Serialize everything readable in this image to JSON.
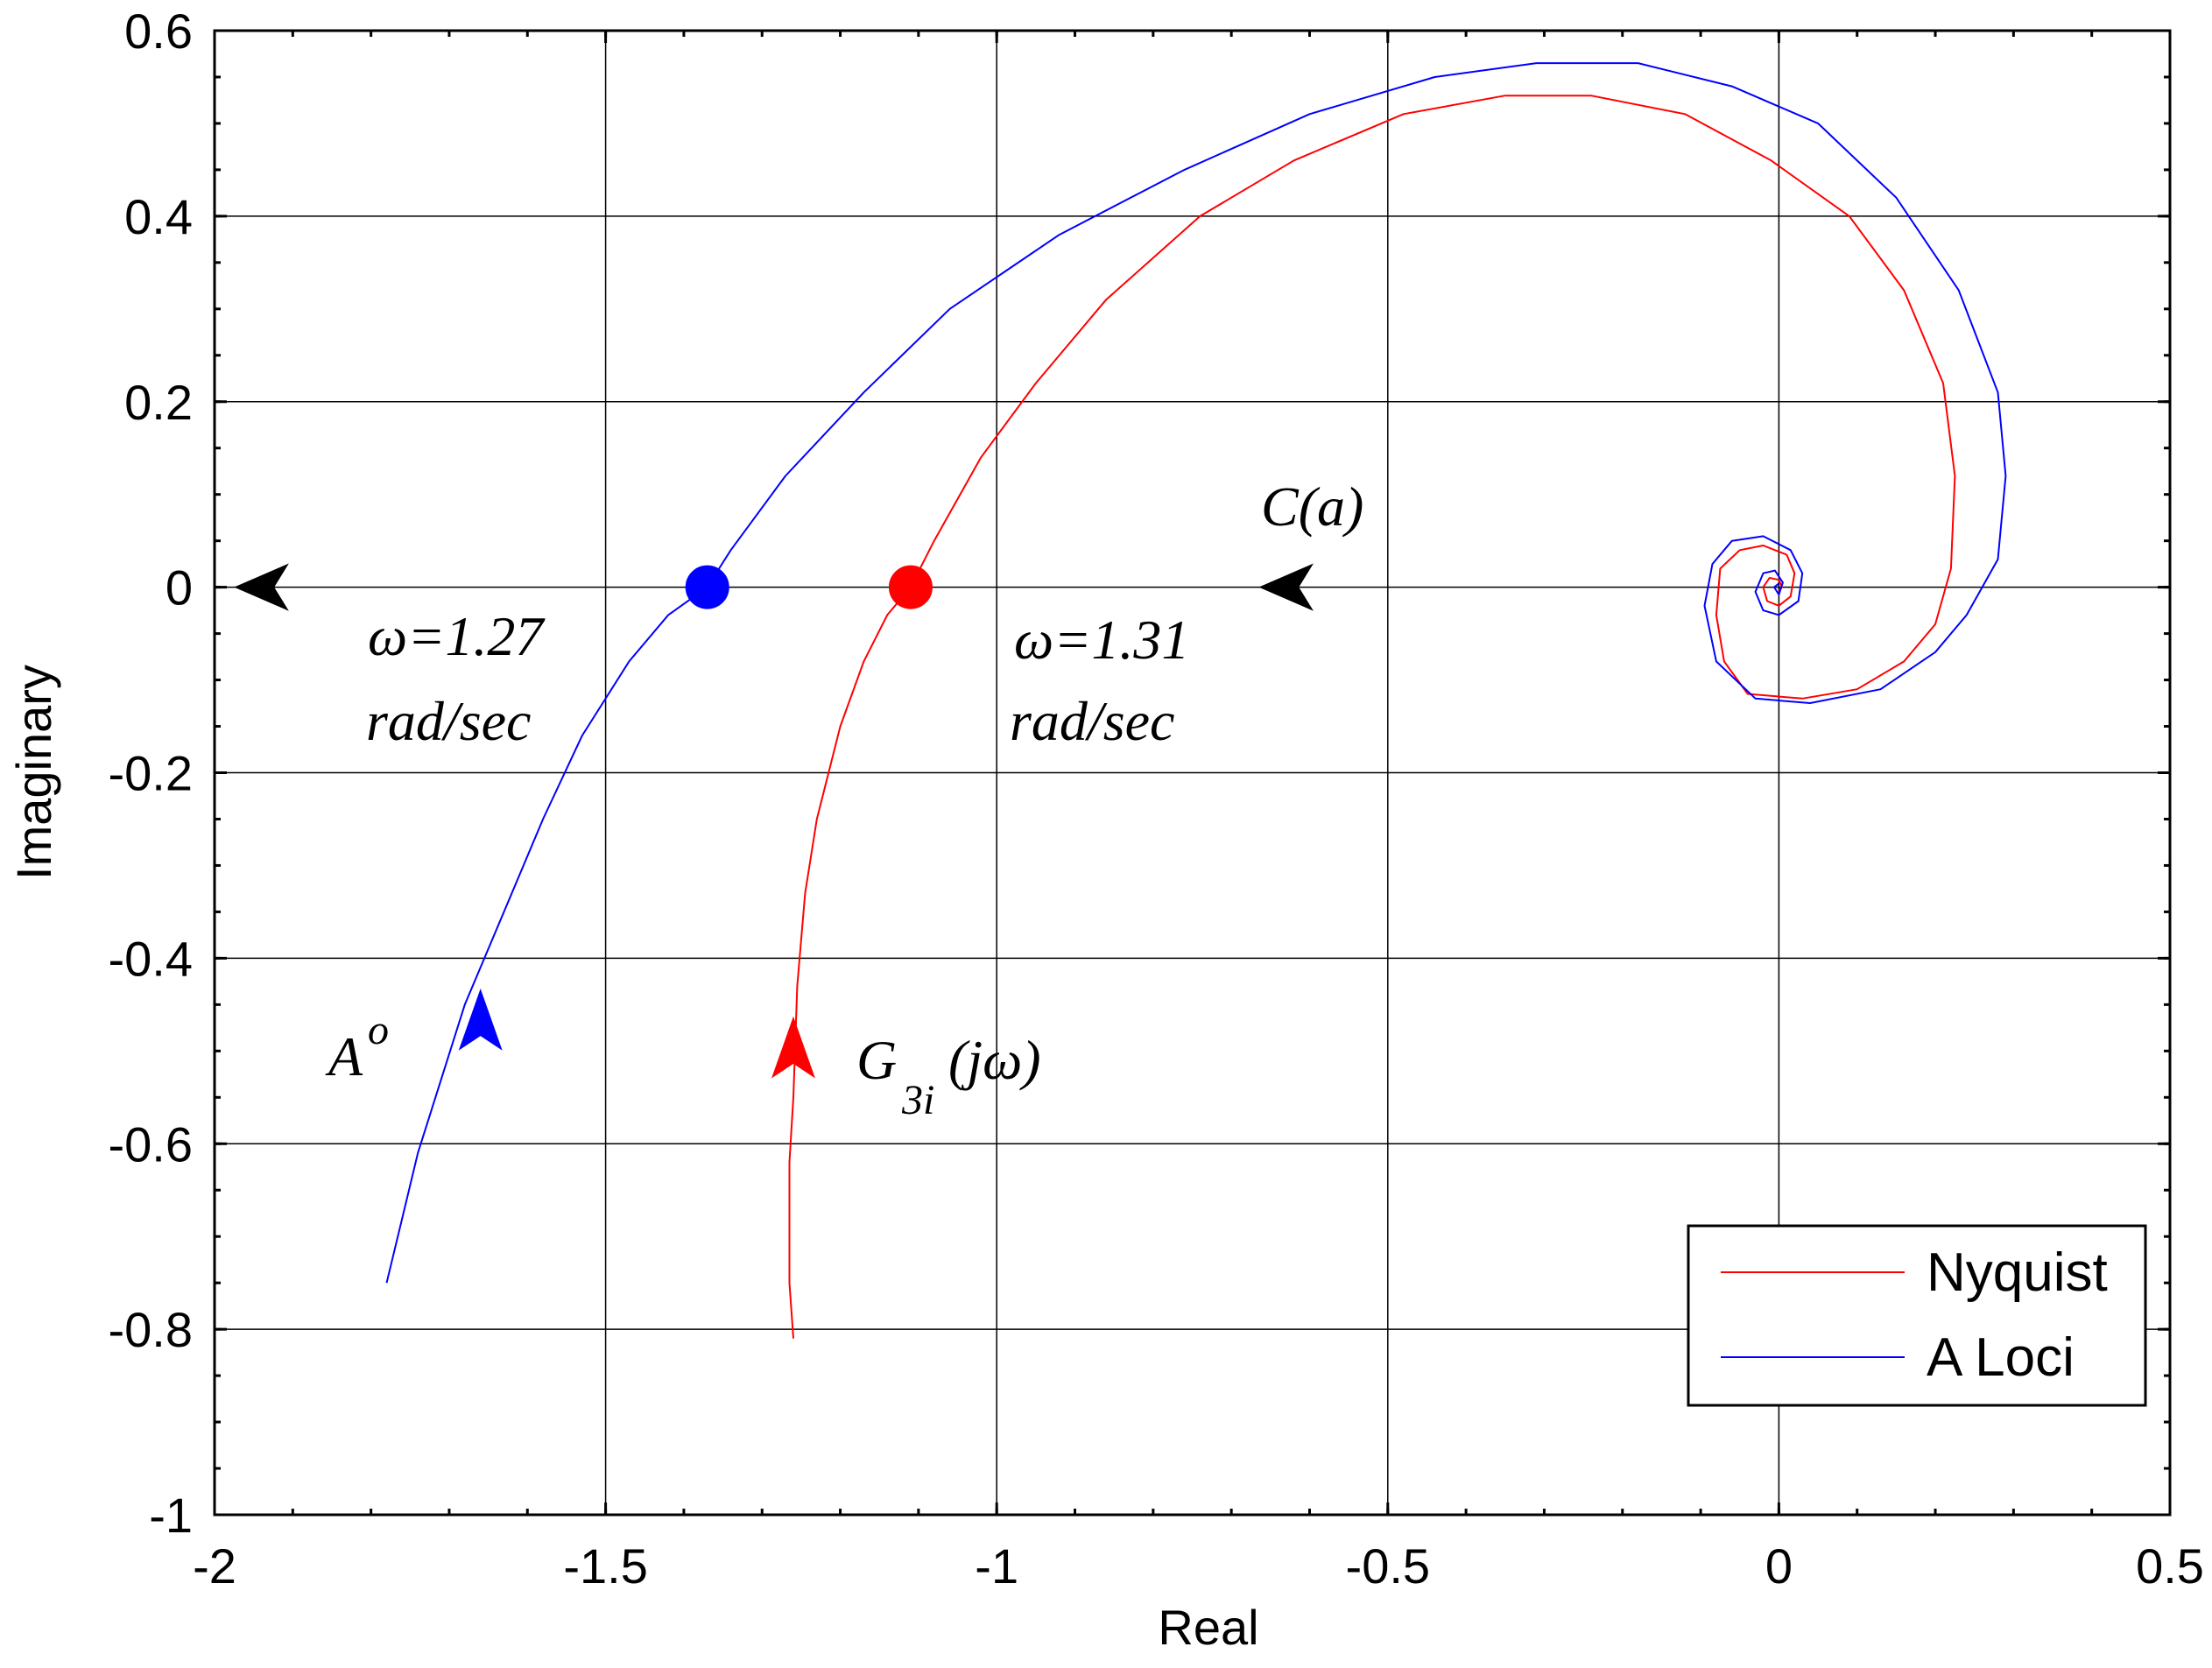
{
  "chart_data": {
    "type": "line",
    "title": "",
    "xlabel": "Real",
    "ylabel": "Imaginary",
    "xlim": [
      -2,
      0.5
    ],
    "ylim": [
      -1,
      0.6
    ],
    "grid": true,
    "x_ticks": [
      -2,
      -1.5,
      -1,
      -0.5,
      0,
      0.5
    ],
    "x_tick_labels": [
      "-2",
      "-1.5",
      "-1",
      "-0.5",
      "0",
      "0.5"
    ],
    "y_ticks": [
      -1,
      -0.8,
      -0.6,
      -0.4,
      -0.2,
      0,
      0.2,
      0.4,
      0.6
    ],
    "y_tick_labels": [
      "-1",
      "-0.8",
      "-0.6",
      "-0.4",
      "-0.2",
      "0",
      "0.2",
      "0.4",
      "0.6"
    ],
    "legend": {
      "position": "bottom-right",
      "entries": [
        "Nyquist",
        "A Loci"
      ]
    },
    "series": [
      {
        "name": "Nyquist",
        "color": "#ff0000",
        "points": [
          [
            -1.26,
            -0.81
          ],
          [
            -1.265,
            -0.75
          ],
          [
            -1.265,
            -0.7
          ],
          [
            -1.265,
            -0.62
          ],
          [
            -1.26,
            -0.55
          ],
          [
            -1.255,
            -0.43
          ],
          [
            -1.245,
            -0.33
          ],
          [
            -1.23,
            -0.25
          ],
          [
            -1.2,
            -0.15
          ],
          [
            -1.17,
            -0.08
          ],
          [
            -1.14,
            -0.03
          ],
          [
            -1.11,
            0.0
          ],
          [
            -1.08,
            0.05
          ],
          [
            -1.02,
            0.14
          ],
          [
            -0.95,
            0.22
          ],
          [
            -0.86,
            0.31
          ],
          [
            -0.74,
            0.4
          ],
          [
            -0.62,
            0.46
          ],
          [
            -0.48,
            0.51
          ],
          [
            -0.35,
            0.53
          ],
          [
            -0.24,
            0.53
          ],
          [
            -0.12,
            0.51
          ],
          [
            -0.01,
            0.46
          ],
          [
            0.09,
            0.4
          ],
          [
            0.16,
            0.32
          ],
          [
            0.21,
            0.22
          ],
          [
            0.225,
            0.12
          ],
          [
            0.22,
            0.02
          ],
          [
            0.2,
            -0.04
          ],
          [
            0.16,
            -0.08
          ],
          [
            0.1,
            -0.11
          ],
          [
            0.03,
            -0.12
          ],
          [
            -0.04,
            -0.115
          ],
          [
            -0.07,
            -0.08
          ],
          [
            -0.08,
            -0.03
          ],
          [
            -0.075,
            0.02
          ],
          [
            -0.05,
            0.04
          ],
          [
            -0.02,
            0.045
          ],
          [
            0.01,
            0.035
          ],
          [
            0.02,
            0.015
          ],
          [
            0.015,
            -0.01
          ],
          [
            0.0,
            -0.02
          ],
          [
            -0.015,
            -0.015
          ],
          [
            -0.02,
            0.0
          ],
          [
            -0.012,
            0.01
          ],
          [
            0.0,
            0.008
          ],
          [
            0.004,
            0.0
          ],
          [
            0.0,
            -0.004
          ]
        ]
      },
      {
        "name": "A Loci",
        "color": "#0000ff",
        "points": [
          [
            -1.78,
            -0.75
          ],
          [
            -1.76,
            -0.68
          ],
          [
            -1.74,
            -0.61
          ],
          [
            -1.71,
            -0.53
          ],
          [
            -1.68,
            -0.45
          ],
          [
            -1.63,
            -0.35
          ],
          [
            -1.58,
            -0.25
          ],
          [
            -1.53,
            -0.16
          ],
          [
            -1.47,
            -0.08
          ],
          [
            -1.42,
            -0.03
          ],
          [
            -1.37,
            0.0
          ],
          [
            -1.34,
            0.04
          ],
          [
            -1.27,
            0.12
          ],
          [
            -1.17,
            0.21
          ],
          [
            -1.06,
            0.3
          ],
          [
            -0.92,
            0.38
          ],
          [
            -0.76,
            0.45
          ],
          [
            -0.6,
            0.51
          ],
          [
            -0.44,
            0.55
          ],
          [
            -0.31,
            0.565
          ],
          [
            -0.18,
            0.565
          ],
          [
            -0.06,
            0.54
          ],
          [
            0.05,
            0.5
          ],
          [
            0.15,
            0.42
          ],
          [
            0.23,
            0.32
          ],
          [
            0.28,
            0.21
          ],
          [
            0.29,
            0.12
          ],
          [
            0.28,
            0.03
          ],
          [
            0.24,
            -0.03
          ],
          [
            0.2,
            -0.07
          ],
          [
            0.13,
            -0.11
          ],
          [
            0.04,
            -0.125
          ],
          [
            -0.03,
            -0.12
          ],
          [
            -0.08,
            -0.08
          ],
          [
            -0.095,
            -0.02
          ],
          [
            -0.085,
            0.025
          ],
          [
            -0.06,
            0.05
          ],
          [
            -0.02,
            0.055
          ],
          [
            0.015,
            0.04
          ],
          [
            0.03,
            0.015
          ],
          [
            0.025,
            -0.015
          ],
          [
            0.0,
            -0.03
          ],
          [
            -0.02,
            -0.025
          ],
          [
            -0.03,
            -0.005
          ],
          [
            -0.02,
            0.015
          ],
          [
            -0.005,
            0.018
          ],
          [
            0.005,
            0.005
          ],
          [
            0.0,
            -0.008
          ],
          [
            -0.006,
            0.0
          ],
          [
            0.0,
            0.004
          ]
        ]
      }
    ],
    "markers": [
      {
        "series": "A Loci",
        "x": -1.37,
        "y": 0.0,
        "color": "#0000ff"
      },
      {
        "series": "Nyquist",
        "x": -1.11,
        "y": 0.0,
        "color": "#ff0000"
      }
    ],
    "arrows": [
      {
        "name": "c-arrow-left",
        "x": -1.94,
        "y": 0.0,
        "direction": "left",
        "color": "#000000"
      },
      {
        "name": "c-arrow-mid",
        "x": -0.63,
        "y": 0.0,
        "direction": "left",
        "color": "#000000"
      },
      {
        "name": "a-arrow",
        "x": -1.66,
        "y": -0.47,
        "direction": "up",
        "color": "#0000ff"
      },
      {
        "name": "g-arrow",
        "x": -1.26,
        "y": -0.5,
        "direction": "up",
        "color": "#ff0000"
      }
    ],
    "annotations": {
      "omega_a": "ω=1.27",
      "omega_a_unit": "rad/sec",
      "omega_g": "ω=1.31",
      "omega_g_unit": "rad/sec",
      "c_label": "C(a)",
      "a_label": "A",
      "a_sup": "o",
      "g_label_main": "G",
      "g_label_sub": "3i",
      "g_label_tail": "(jω)"
    }
  }
}
